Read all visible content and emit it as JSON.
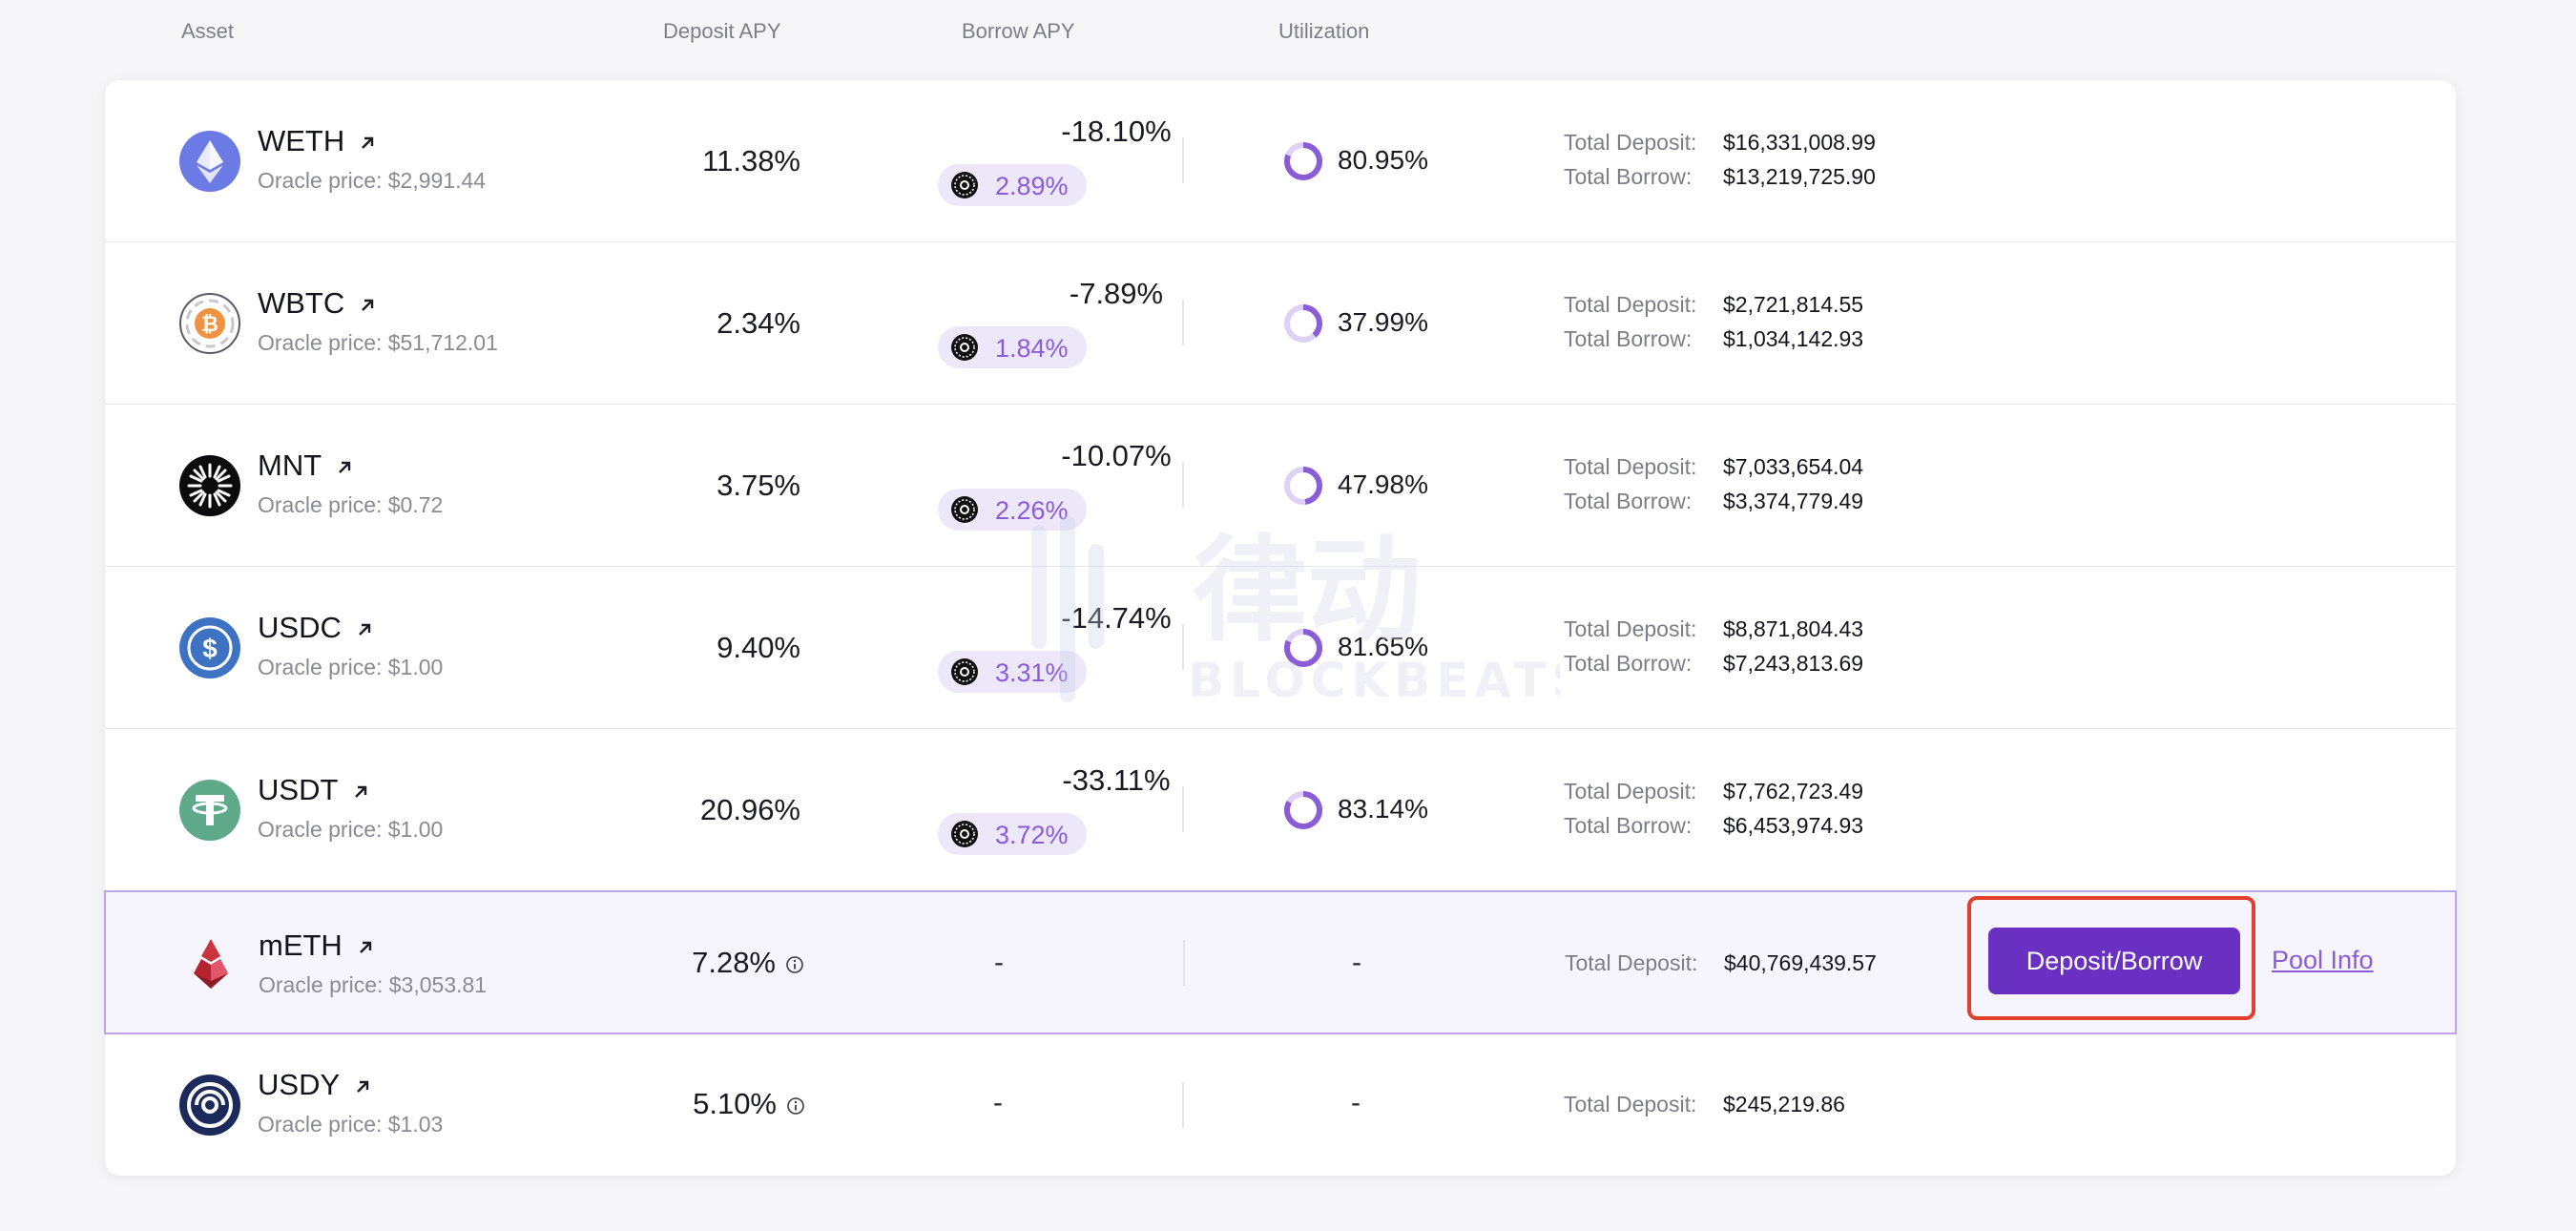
{
  "header": {
    "asset": "Asset",
    "deposit_apy": "Deposit APY",
    "borrow_apy": "Borrow APY",
    "utilization": "Utilization"
  },
  "labels": {
    "oracle_prefix": "Oracle price: ",
    "total_deposit": "Total Deposit:",
    "total_borrow": "Total Borrow:",
    "dash": "-"
  },
  "rows": [
    {
      "symbol": "WETH",
      "oracle_price": "$2,991.44",
      "deposit_apy": "11.38%",
      "borrow_apy": "-18.10%",
      "reward_apy": "2.89%",
      "utilization": "80.95%",
      "utilization_value": 80.95,
      "total_deposit": "$16,331,008.99",
      "total_borrow": "$13,219,725.90"
    },
    {
      "symbol": "WBTC",
      "oracle_price": "$51,712.01",
      "deposit_apy": "2.34%",
      "borrow_apy": "-7.89%",
      "reward_apy": "1.84%",
      "utilization": "37.99%",
      "utilization_value": 37.99,
      "total_deposit": "$2,721,814.55",
      "total_borrow": "$1,034,142.93"
    },
    {
      "symbol": "MNT",
      "oracle_price": "$0.72",
      "deposit_apy": "3.75%",
      "borrow_apy": "-10.07%",
      "reward_apy": "2.26%",
      "utilization": "47.98%",
      "utilization_value": 47.98,
      "total_deposit": "$7,033,654.04",
      "total_borrow": "$3,374,779.49"
    },
    {
      "symbol": "USDC",
      "oracle_price": "$1.00",
      "deposit_apy": "9.40%",
      "borrow_apy": "-14.74%",
      "reward_apy": "3.31%",
      "utilization": "81.65%",
      "utilization_value": 81.65,
      "total_deposit": "$8,871,804.43",
      "total_borrow": "$7,243,813.69"
    },
    {
      "symbol": "USDT",
      "oracle_price": "$1.00",
      "deposit_apy": "20.96%",
      "borrow_apy": "-33.11%",
      "reward_apy": "3.72%",
      "utilization": "83.14%",
      "utilization_value": 83.14,
      "total_deposit": "$7,762,723.49",
      "total_borrow": "$6,453,974.93"
    },
    {
      "symbol": "mETH",
      "oracle_price": "$3,053.81",
      "deposit_apy": "7.28%",
      "total_deposit": "$40,769,439.57"
    },
    {
      "symbol": "USDY",
      "oracle_price": "$1.03",
      "deposit_apy": "5.10%",
      "total_deposit": "$245,219.86"
    }
  ],
  "actions": {
    "deposit_borrow": "Deposit/Borrow",
    "pool_info": "Pool Info"
  },
  "watermark": {
    "cn": "律动",
    "en": "BLOCKBEATS"
  },
  "colors": {
    "accent": "#6a30c2",
    "accent_light": "#8a5cd6",
    "highlight_border": "#b9a7e6",
    "red_box": "#e0402c"
  }
}
